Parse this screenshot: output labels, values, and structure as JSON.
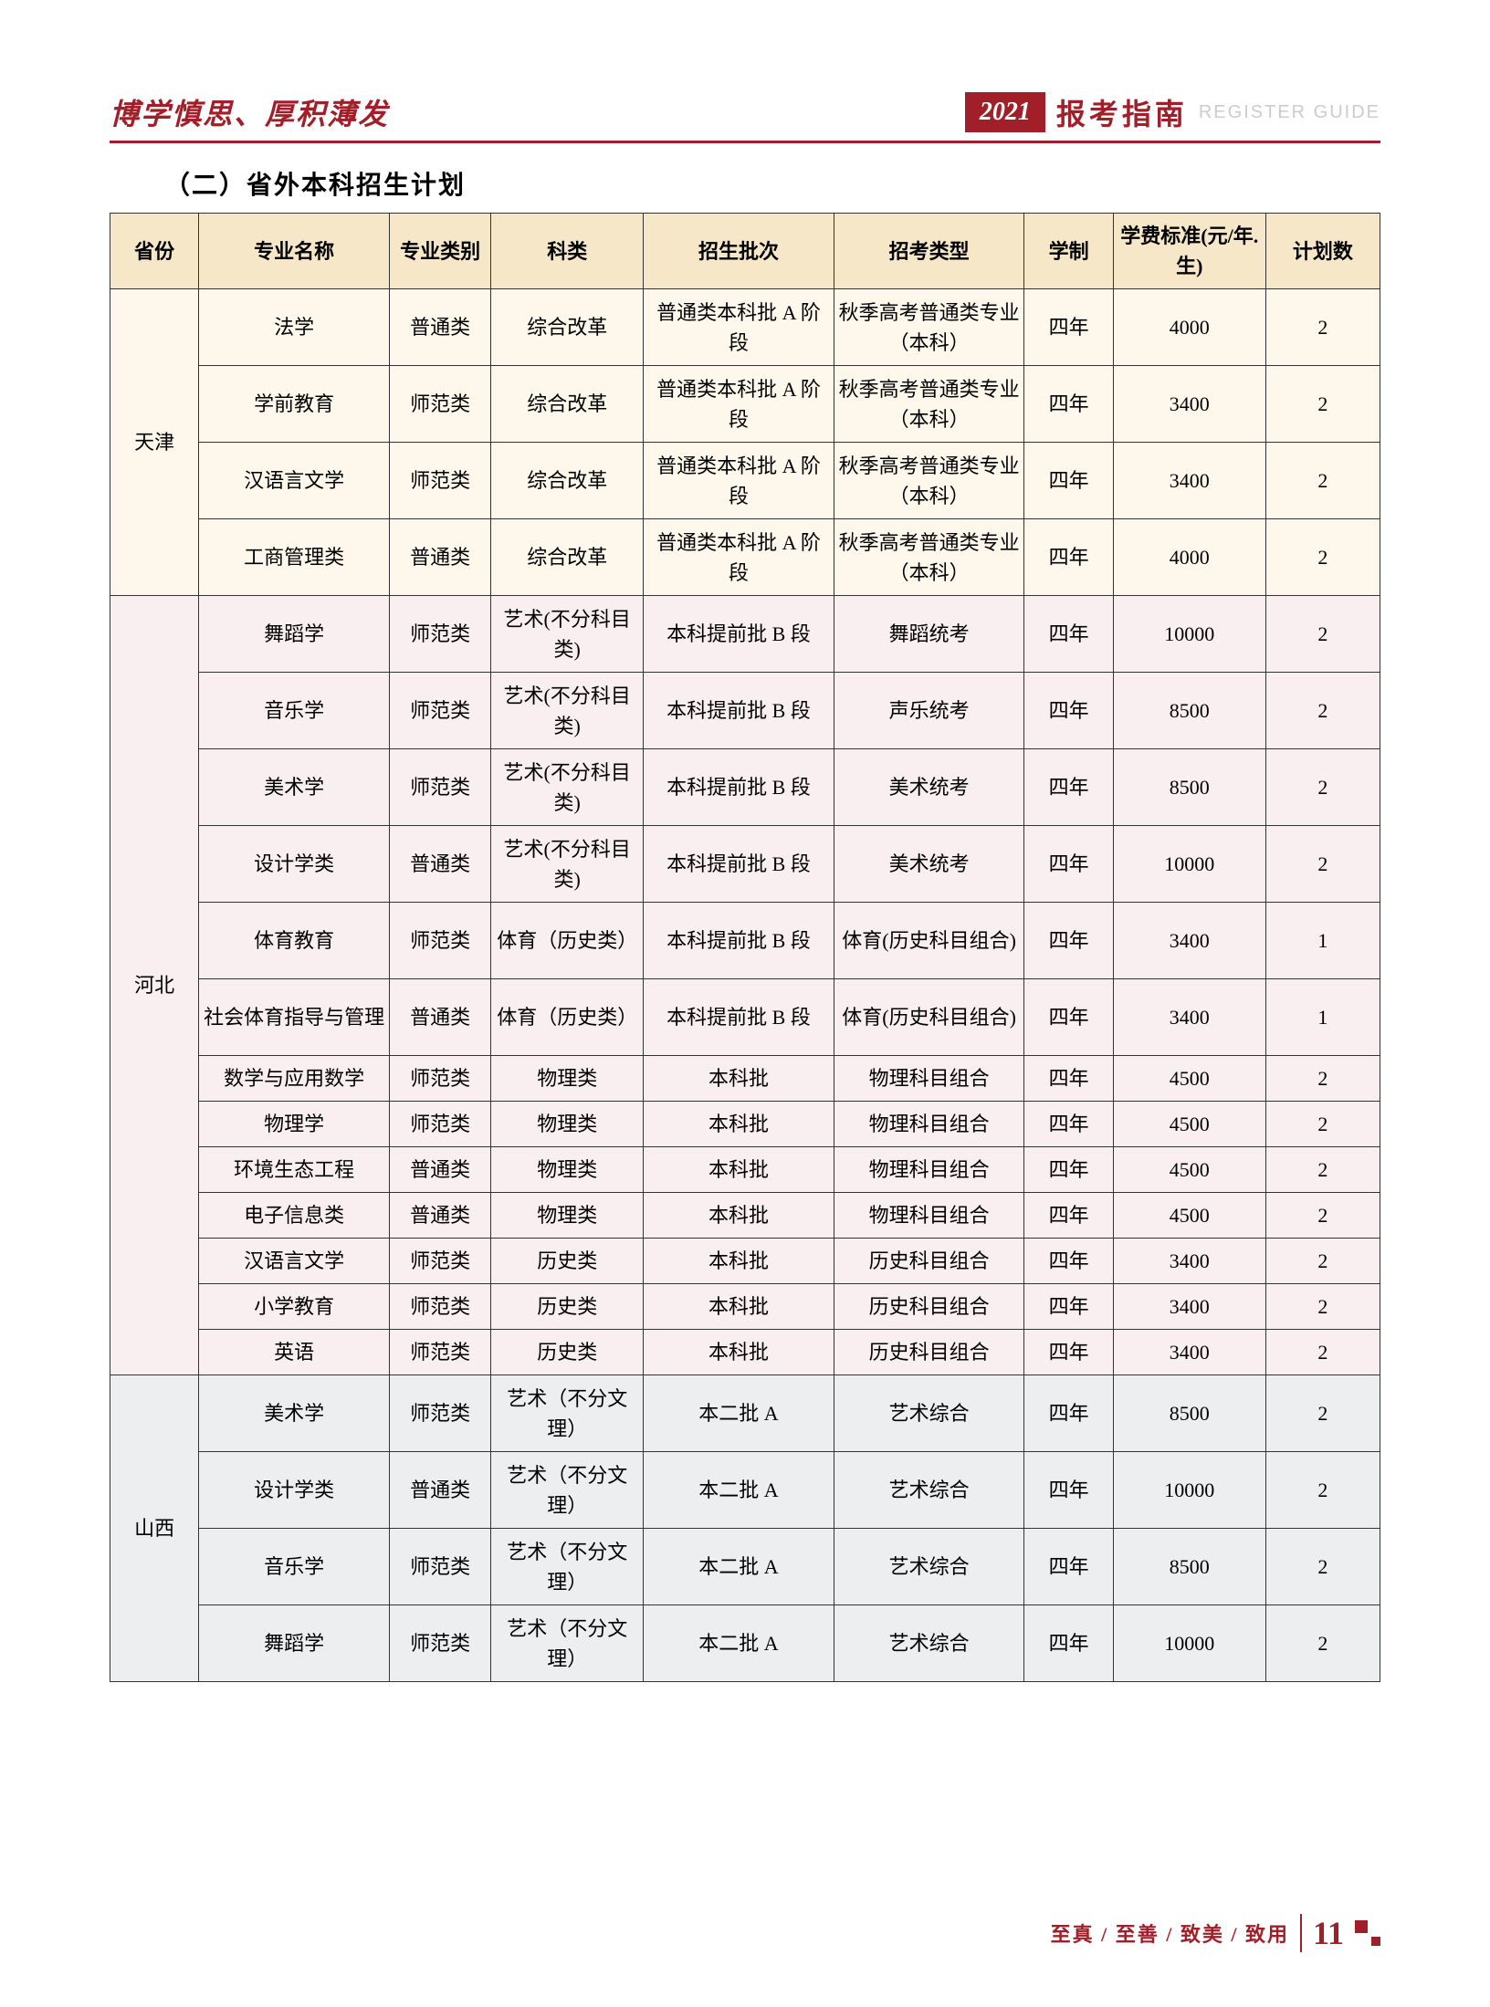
{
  "header": {
    "motto_left": "博学慎思、厚积薄发",
    "year": "2021",
    "guide_cn": "报考指南",
    "guide_en": "REGISTER GUIDE"
  },
  "section_title": "（二）省外本科招生计划",
  "table": {
    "headers": [
      "省份",
      "专业名称",
      "专业类别",
      "科类",
      "招生批次",
      "招考类型",
      "学制",
      "学费标准(元/年.生)",
      "计划数"
    ],
    "groups": [
      {
        "province": "天津",
        "class": "group-tianjin",
        "rows": [
          {
            "tall": true,
            "cells": [
              "法学",
              "普通类",
              "综合改革",
              "普通类本科批 A 阶段",
              "秋季高考普通类专业（本科）",
              "四年",
              "4000",
              "2"
            ]
          },
          {
            "tall": true,
            "cells": [
              "学前教育",
              "师范类",
              "综合改革",
              "普通类本科批 A 阶段",
              "秋季高考普通类专业（本科）",
              "四年",
              "3400",
              "2"
            ]
          },
          {
            "tall": true,
            "cells": [
              "汉语言文学",
              "师范类",
              "综合改革",
              "普通类本科批 A 阶段",
              "秋季高考普通类专业（本科）",
              "四年",
              "3400",
              "2"
            ]
          },
          {
            "tall": true,
            "cells": [
              "工商管理类",
              "普通类",
              "综合改革",
              "普通类本科批 A 阶段",
              "秋季高考普通类专业（本科）",
              "四年",
              "4000",
              "2"
            ]
          }
        ]
      },
      {
        "province": "河北",
        "class": "group-hebei",
        "rows": [
          {
            "tall": true,
            "cells": [
              "舞蹈学",
              "师范类",
              "艺术(不分科目类)",
              "本科提前批 B 段",
              "舞蹈统考",
              "四年",
              "10000",
              "2"
            ]
          },
          {
            "tall": true,
            "cells": [
              "音乐学",
              "师范类",
              "艺术(不分科目类)",
              "本科提前批 B 段",
              "声乐统考",
              "四年",
              "8500",
              "2"
            ]
          },
          {
            "tall": true,
            "cells": [
              "美术学",
              "师范类",
              "艺术(不分科目类)",
              "本科提前批 B 段",
              "美术统考",
              "四年",
              "8500",
              "2"
            ]
          },
          {
            "tall": true,
            "cells": [
              "设计学类",
              "普通类",
              "艺术(不分科目类)",
              "本科提前批 B 段",
              "美术统考",
              "四年",
              "10000",
              "2"
            ]
          },
          {
            "tall": true,
            "cells": [
              "体育教育",
              "师范类",
              "体育（历史类）",
              "本科提前批 B 段",
              "体育(历史科目组合)",
              "四年",
              "3400",
              "1"
            ]
          },
          {
            "tall": true,
            "cells": [
              "社会体育指导与管理",
              "普通类",
              "体育（历史类）",
              "本科提前批 B 段",
              "体育(历史科目组合)",
              "四年",
              "3400",
              "1"
            ]
          },
          {
            "tall": false,
            "cells": [
              "数学与应用数学",
              "师范类",
              "物理类",
              "本科批",
              "物理科目组合",
              "四年",
              "4500",
              "2"
            ]
          },
          {
            "tall": false,
            "cells": [
              "物理学",
              "师范类",
              "物理类",
              "本科批",
              "物理科目组合",
              "四年",
              "4500",
              "2"
            ]
          },
          {
            "tall": false,
            "cells": [
              "环境生态工程",
              "普通类",
              "物理类",
              "本科批",
              "物理科目组合",
              "四年",
              "4500",
              "2"
            ]
          },
          {
            "tall": false,
            "cells": [
              "电子信息类",
              "普通类",
              "物理类",
              "本科批",
              "物理科目组合",
              "四年",
              "4500",
              "2"
            ]
          },
          {
            "tall": false,
            "cells": [
              "汉语言文学",
              "师范类",
              "历史类",
              "本科批",
              "历史科目组合",
              "四年",
              "3400",
              "2"
            ]
          },
          {
            "tall": false,
            "cells": [
              "小学教育",
              "师范类",
              "历史类",
              "本科批",
              "历史科目组合",
              "四年",
              "3400",
              "2"
            ]
          },
          {
            "tall": false,
            "cells": [
              "英语",
              "师范类",
              "历史类",
              "本科批",
              "历史科目组合",
              "四年",
              "3400",
              "2"
            ]
          }
        ]
      },
      {
        "province": "山西",
        "class": "group-shanxi",
        "rows": [
          {
            "tall": true,
            "cells": [
              "美术学",
              "师范类",
              "艺术（不分文理）",
              "本二批 A",
              "艺术综合",
              "四年",
              "8500",
              "2"
            ]
          },
          {
            "tall": true,
            "cells": [
              "设计学类",
              "普通类",
              "艺术（不分文理）",
              "本二批 A",
              "艺术综合",
              "四年",
              "10000",
              "2"
            ]
          },
          {
            "tall": true,
            "cells": [
              "音乐学",
              "师范类",
              "艺术（不分文理）",
              "本二批 A",
              "艺术综合",
              "四年",
              "8500",
              "2"
            ]
          },
          {
            "tall": true,
            "cells": [
              "舞蹈学",
              "师范类",
              "艺术（不分文理）",
              "本二批 A",
              "艺术综合",
              "四年",
              "10000",
              "2"
            ]
          }
        ]
      }
    ]
  },
  "footer": {
    "motto": "至真 / 至善 / 致美 / 致用",
    "page_number": "11"
  }
}
